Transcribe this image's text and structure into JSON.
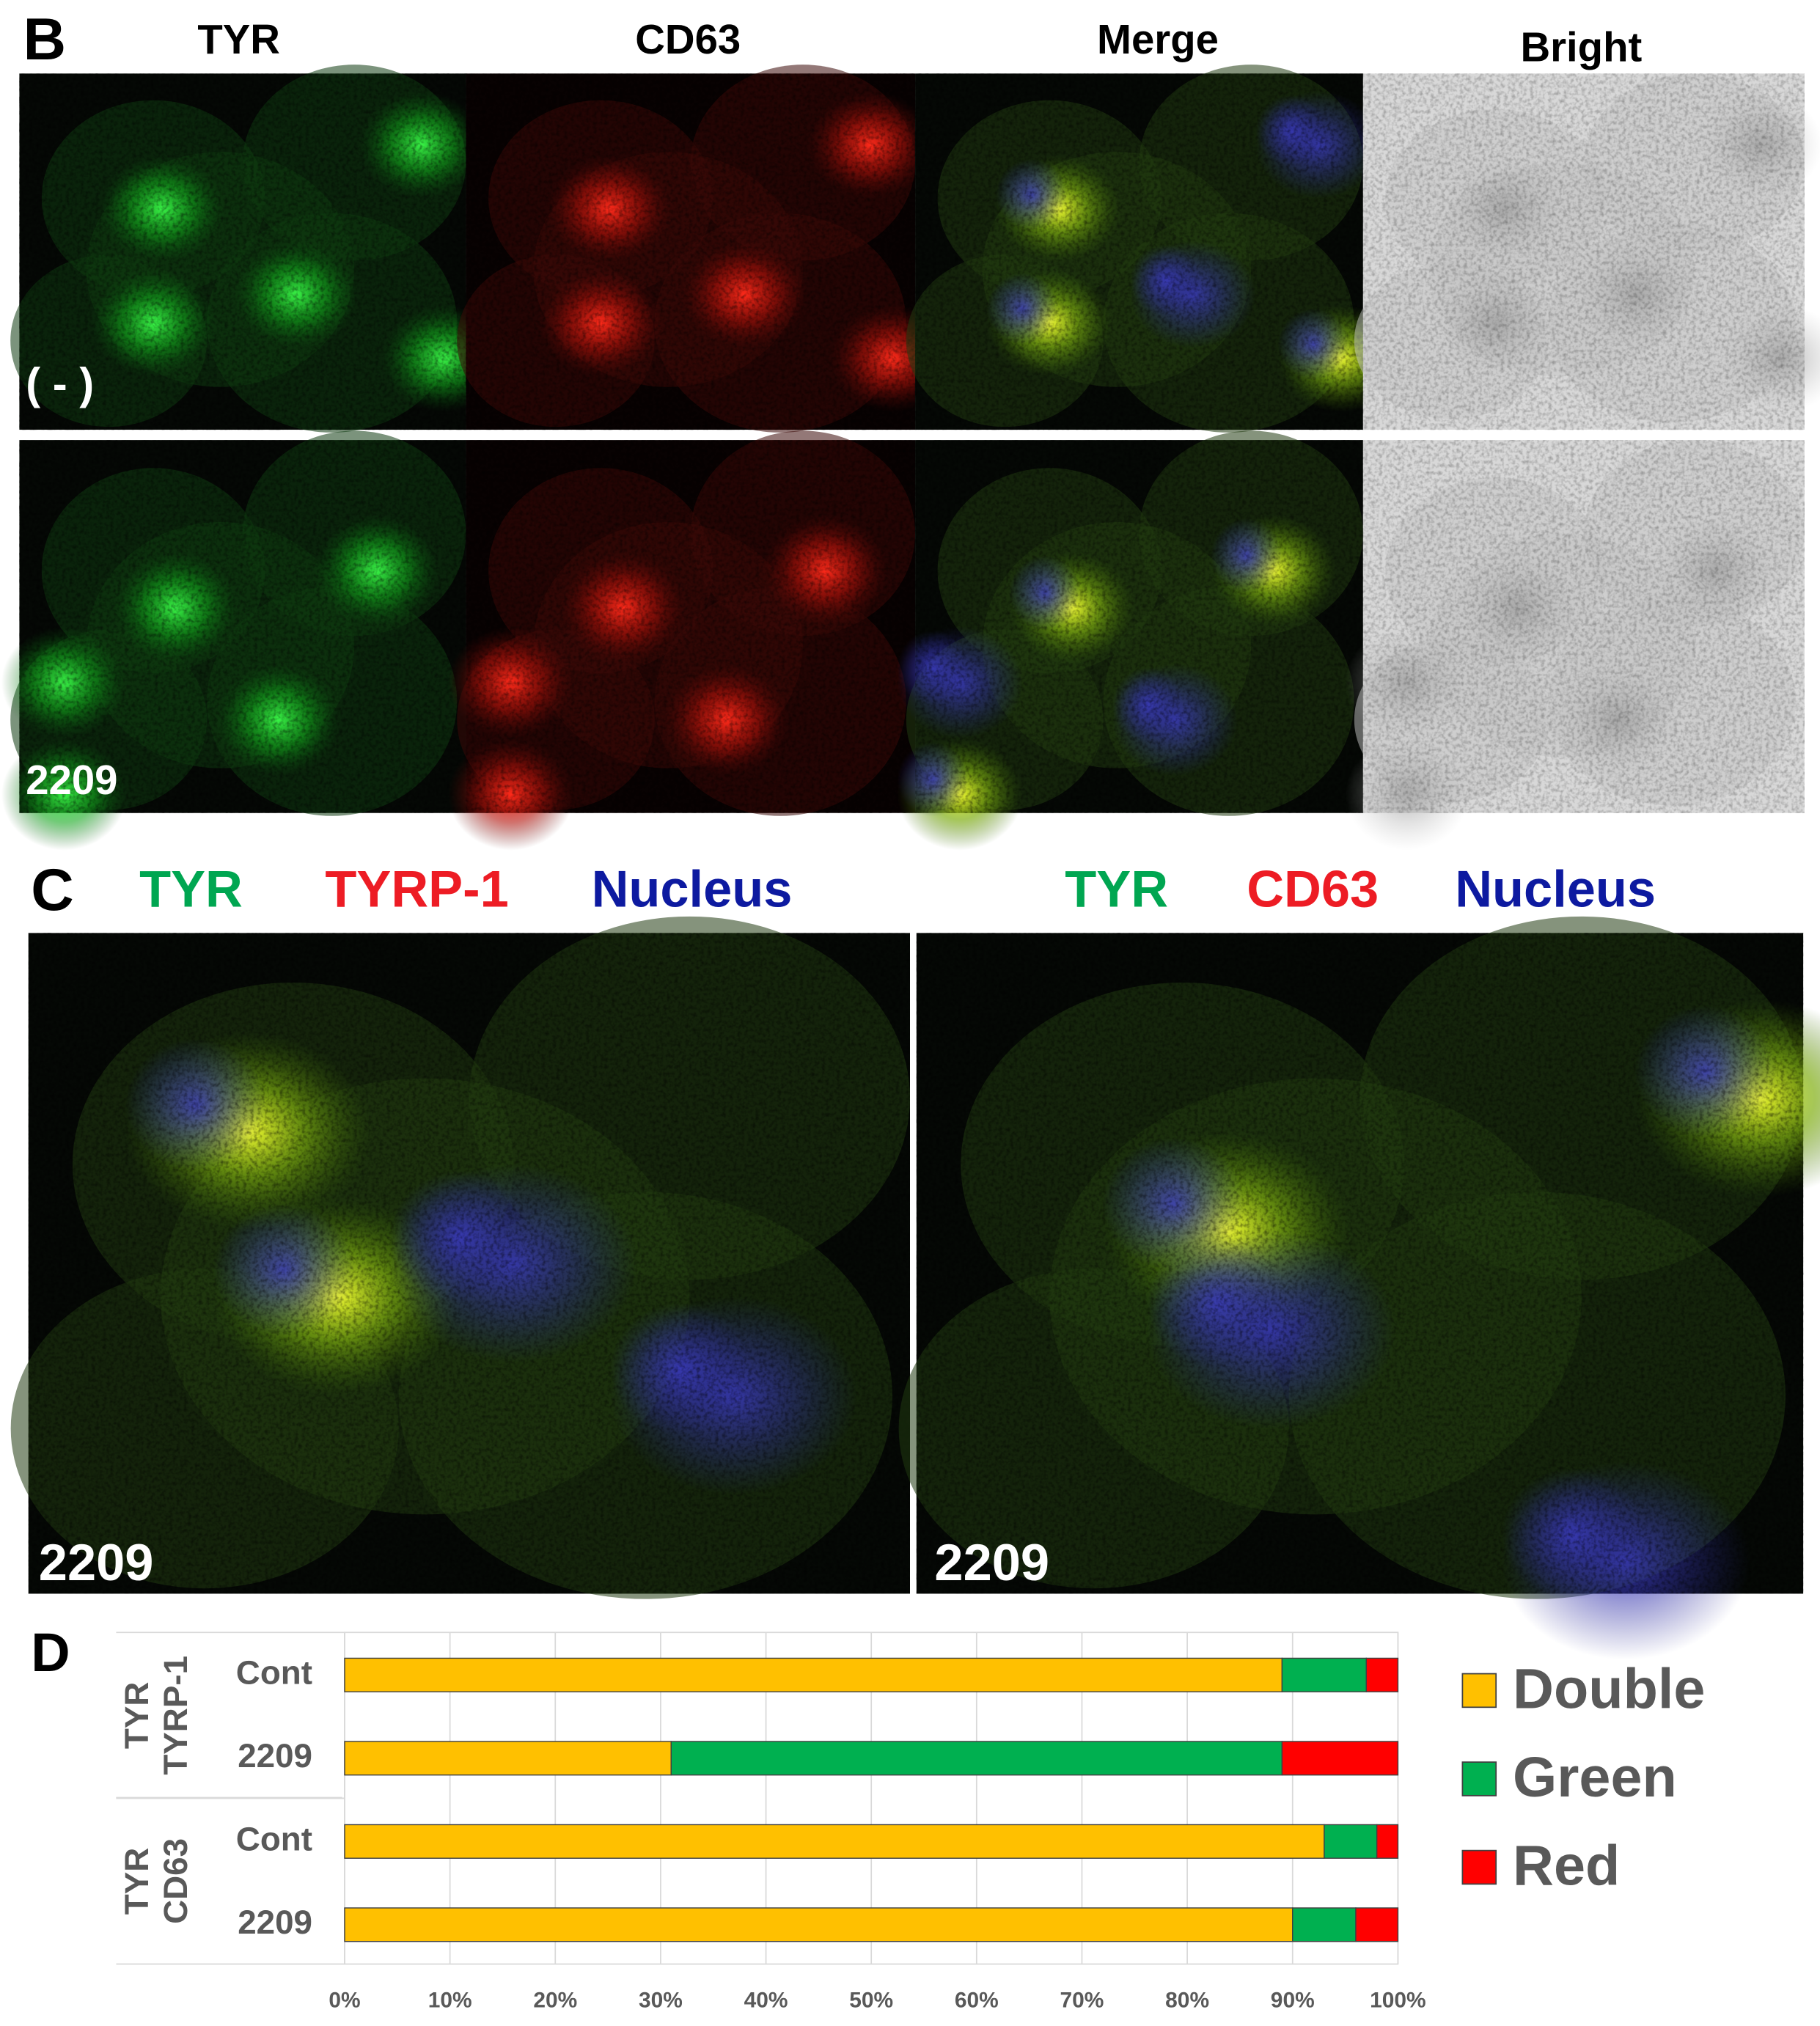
{
  "panel_b": {
    "label": "B",
    "columns": [
      "TYR",
      "CD63",
      "Merge",
      "Bright"
    ],
    "rows": [
      "( - )",
      "2209"
    ]
  },
  "panel_c": {
    "label": "C",
    "images": [
      {
        "legend": [
          "TYR",
          "TYRP-1",
          "Nucleus"
        ],
        "label": "2209"
      },
      {
        "legend": [
          "TYR",
          "CD63",
          "Nucleus"
        ],
        "label": "2209"
      }
    ]
  },
  "chart_data": {
    "type": "bar",
    "label": "D",
    "orientation": "horizontal",
    "stacked": true,
    "groups": [
      [
        "TYR",
        "TYRP-1"
      ],
      [
        "TYR",
        "CD63"
      ]
    ],
    "categories": [
      "Cont",
      "2209",
      "Cont",
      "2209"
    ],
    "series": [
      {
        "name": "Double",
        "color": "#ffc000",
        "values": [
          89,
          31,
          93,
          90
        ]
      },
      {
        "name": "Green",
        "color": "#00b050",
        "values": [
          8,
          58,
          5,
          6
        ]
      },
      {
        "name": "Red",
        "color": "#ff0000",
        "values": [
          3,
          11,
          2,
          4
        ]
      }
    ],
    "xlim": [
      0,
      100
    ],
    "xticks": [
      {
        "value": 0,
        "label": "0%"
      },
      {
        "value": 10,
        "label": "10%"
      },
      {
        "value": 20,
        "label": "20%"
      },
      {
        "value": 30,
        "label": "30%"
      },
      {
        "value": 40,
        "label": "40%"
      },
      {
        "value": 50,
        "label": "50%"
      },
      {
        "value": 60,
        "label": "60%"
      },
      {
        "value": 70,
        "label": "70%"
      },
      {
        "value": 80,
        "label": "80%"
      },
      {
        "value": 90,
        "label": "90%"
      },
      {
        "value": 100,
        "label": "100%"
      }
    ],
    "grid": true
  }
}
